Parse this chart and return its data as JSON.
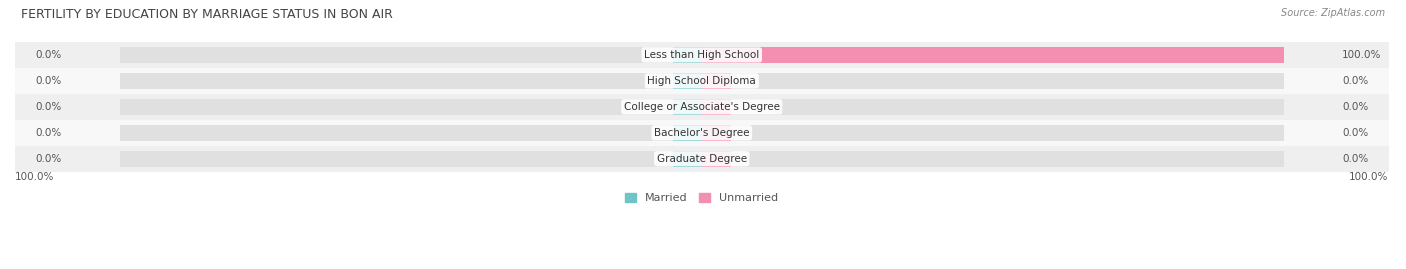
{
  "title": "FERTILITY BY EDUCATION BY MARRIAGE STATUS IN BON AIR",
  "source": "Source: ZipAtlas.com",
  "categories": [
    "Less than High School",
    "High School Diploma",
    "College or Associate's Degree",
    "Bachelor's Degree",
    "Graduate Degree"
  ],
  "married_values": [
    0.0,
    0.0,
    0.0,
    0.0,
    0.0
  ],
  "unmarried_values": [
    100.0,
    0.0,
    0.0,
    0.0,
    0.0
  ],
  "married_color": "#6DC5C7",
  "unmarried_color": "#F48FB1",
  "bar_bg_color": "#E0E0E0",
  "row_bg_colors": [
    "#EFEFEF",
    "#F8F8F8"
  ],
  "title_color": "#444444",
  "text_color": "#555555",
  "max_value": 100.0,
  "stub_size": 5.0,
  "legend_married": "Married",
  "legend_unmarried": "Unmarried",
  "bottom_left_label": "100.0%",
  "bottom_right_label": "100.0%"
}
